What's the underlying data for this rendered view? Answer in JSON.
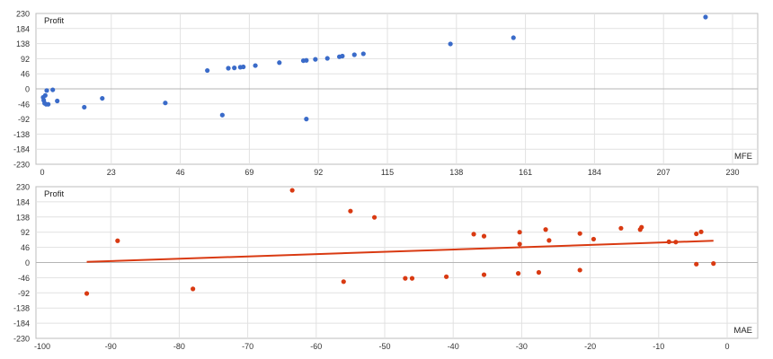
{
  "chart_data": [
    {
      "type": "scatter",
      "ylabel": "Profit",
      "xlabel": "MFE",
      "xlim": [
        0,
        230
      ],
      "ylim": [
        -230,
        230
      ],
      "xticks": [
        "0",
        "23",
        "46",
        "69",
        "92",
        "115",
        "138",
        "161",
        "184",
        "207",
        "230"
      ],
      "yticks": [
        "230",
        "184",
        "138",
        "92",
        "46",
        "0",
        "-46",
        "-92",
        "-138",
        "-184",
        "-230"
      ],
      "grid": true,
      "color": "#3a6bc9",
      "points": [
        {
          "x": 0.3,
          "y": -26
        },
        {
          "x": 0.5,
          "y": -35
        },
        {
          "x": 0.8,
          "y": -44
        },
        {
          "x": 1,
          "y": -20
        },
        {
          "x": 1.3,
          "y": -47
        },
        {
          "x": 1.5,
          "y": -5
        },
        {
          "x": 2,
          "y": -47
        },
        {
          "x": 3.5,
          "y": -3
        },
        {
          "x": 5,
          "y": -37
        },
        {
          "x": 14,
          "y": -56
        },
        {
          "x": 20,
          "y": -29
        },
        {
          "x": 41,
          "y": -43
        },
        {
          "x": 55,
          "y": 56
        },
        {
          "x": 60,
          "y": -80
        },
        {
          "x": 62,
          "y": 63
        },
        {
          "x": 64,
          "y": 64
        },
        {
          "x": 66,
          "y": 66
        },
        {
          "x": 67,
          "y": 67
        },
        {
          "x": 71,
          "y": 71
        },
        {
          "x": 79,
          "y": 80
        },
        {
          "x": 87,
          "y": 86
        },
        {
          "x": 88,
          "y": -92
        },
        {
          "x": 88,
          "y": 87
        },
        {
          "x": 91,
          "y": 90
        },
        {
          "x": 95,
          "y": 93
        },
        {
          "x": 99,
          "y": 98
        },
        {
          "x": 100,
          "y": 100
        },
        {
          "x": 104,
          "y": 104
        },
        {
          "x": 107,
          "y": 107
        },
        {
          "x": 136,
          "y": 137
        },
        {
          "x": 157,
          "y": 156
        },
        {
          "x": 221,
          "y": 219
        }
      ]
    },
    {
      "type": "scatter",
      "ylabel": "Profit",
      "xlabel": "MAE",
      "xlim": [
        -100,
        0
      ],
      "ylim": [
        -230,
        230
      ],
      "xticks": [
        "-100",
        "-90",
        "-80",
        "-70",
        "-60",
        "-50",
        "-40",
        "-30",
        "-20",
        "-10",
        "0"
      ],
      "yticks": [
        "230",
        "184",
        "138",
        "92",
        "46",
        "0",
        "-46",
        "-92",
        "-138",
        "-184",
        "-230"
      ],
      "grid": true,
      "color": "#d93a12",
      "trendline": {
        "from": [
          -93.5,
          2
        ],
        "to": [
          -2,
          66
        ]
      },
      "points": [
        {
          "x": -93.5,
          "y": -94
        },
        {
          "x": -89,
          "y": 66
        },
        {
          "x": -78,
          "y": -80
        },
        {
          "x": -63.5,
          "y": 219
        },
        {
          "x": -56,
          "y": -58
        },
        {
          "x": -55,
          "y": 156
        },
        {
          "x": -51.5,
          "y": 137
        },
        {
          "x": -47,
          "y": -48
        },
        {
          "x": -46,
          "y": -48
        },
        {
          "x": -41,
          "y": -43
        },
        {
          "x": -37,
          "y": 86
        },
        {
          "x": -35.5,
          "y": 80
        },
        {
          "x": -35.5,
          "y": -37
        },
        {
          "x": -30.5,
          "y": -33
        },
        {
          "x": -30.3,
          "y": 92
        },
        {
          "x": -30.3,
          "y": 56
        },
        {
          "x": -27.5,
          "y": -30
        },
        {
          "x": -26.5,
          "y": 100
        },
        {
          "x": -26,
          "y": 67
        },
        {
          "x": -21.5,
          "y": 88
        },
        {
          "x": -21.5,
          "y": -23
        },
        {
          "x": -19.5,
          "y": 71
        },
        {
          "x": -15.5,
          "y": 104
        },
        {
          "x": -12.5,
          "y": 107
        },
        {
          "x": -12.7,
          "y": 100
        },
        {
          "x": -8.5,
          "y": 63
        },
        {
          "x": -7.5,
          "y": 62
        },
        {
          "x": -4.5,
          "y": -5
        },
        {
          "x": -4.5,
          "y": 87
        },
        {
          "x": -3.8,
          "y": 93
        },
        {
          "x": -2,
          "y": -3
        }
      ]
    }
  ]
}
